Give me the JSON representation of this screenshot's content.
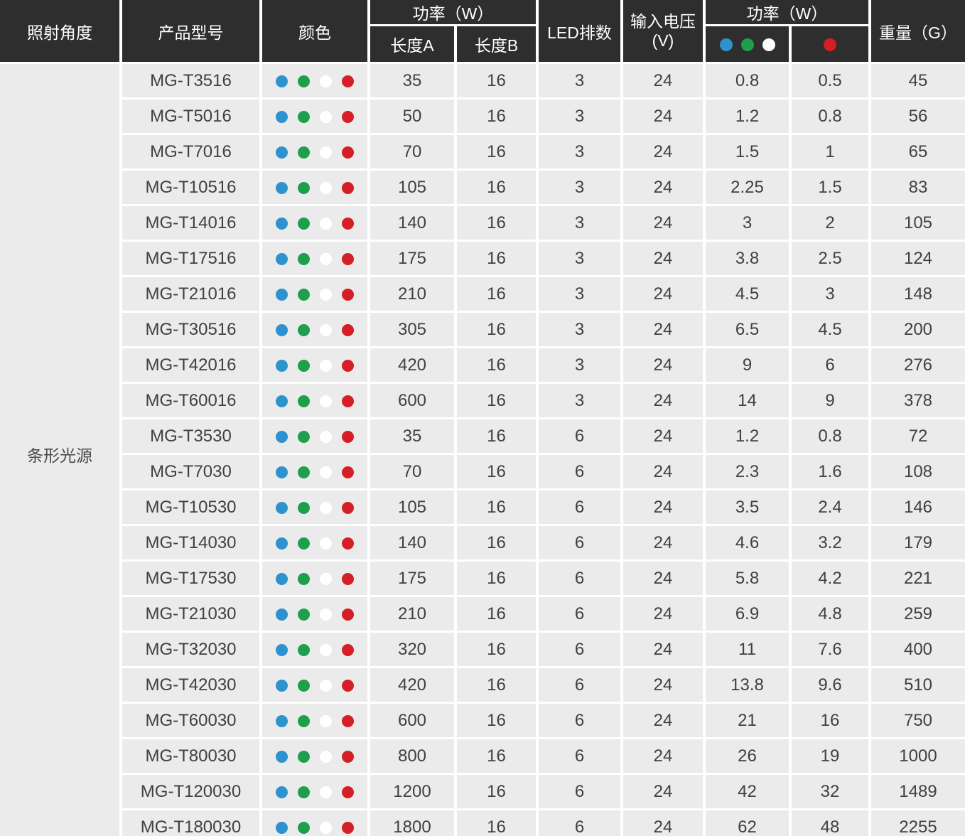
{
  "table": {
    "headers": {
      "angle": "照射角度",
      "model": "产品型号",
      "color": "颜色",
      "power_group_lengths": "功率（W）",
      "length_a": "长度A",
      "length_b": "长度B",
      "led_rows": "LED排数",
      "input_voltage_line1": "输入电压",
      "input_voltage_line2": "(V)",
      "power_group_colors": "功率（W）",
      "weight": "重量（G）"
    },
    "angle_group_label": "条形光源",
    "color_dot_icons": [
      "blue-dot-icon",
      "green-dot-icon",
      "white-dot-icon",
      "red-dot-icon"
    ],
    "power_subcolumn_1_dots": [
      "blue-dot-icon",
      "green-dot-icon",
      "white-dot-icon"
    ],
    "power_subcolumn_2_dots": [
      "red-dot-icon"
    ],
    "rows": [
      {
        "model": "MG-T3516",
        "length_a": "35",
        "length_b": "16",
        "led_rows": "3",
        "voltage": "24",
        "power_bgw": "0.8",
        "power_r": "0.5",
        "weight": "45"
      },
      {
        "model": "MG-T5016",
        "length_a": "50",
        "length_b": "16",
        "led_rows": "3",
        "voltage": "24",
        "power_bgw": "1.2",
        "power_r": "0.8",
        "weight": "56"
      },
      {
        "model": "MG-T7016",
        "length_a": "70",
        "length_b": "16",
        "led_rows": "3",
        "voltage": "24",
        "power_bgw": "1.5",
        "power_r": "1",
        "weight": "65"
      },
      {
        "model": "MG-T10516",
        "length_a": "105",
        "length_b": "16",
        "led_rows": "3",
        "voltage": "24",
        "power_bgw": "2.25",
        "power_r": "1.5",
        "weight": "83"
      },
      {
        "model": "MG-T14016",
        "length_a": "140",
        "length_b": "16",
        "led_rows": "3",
        "voltage": "24",
        "power_bgw": "3",
        "power_r": "2",
        "weight": "105"
      },
      {
        "model": "MG-T17516",
        "length_a": "175",
        "length_b": "16",
        "led_rows": "3",
        "voltage": "24",
        "power_bgw": "3.8",
        "power_r": "2.5",
        "weight": "124"
      },
      {
        "model": "MG-T21016",
        "length_a": "210",
        "length_b": "16",
        "led_rows": "3",
        "voltage": "24",
        "power_bgw": "4.5",
        "power_r": "3",
        "weight": "148"
      },
      {
        "model": "MG-T30516",
        "length_a": "305",
        "length_b": "16",
        "led_rows": "3",
        "voltage": "24",
        "power_bgw": "6.5",
        "power_r": "4.5",
        "weight": "200"
      },
      {
        "model": "MG-T42016",
        "length_a": "420",
        "length_b": "16",
        "led_rows": "3",
        "voltage": "24",
        "power_bgw": "9",
        "power_r": "6",
        "weight": "276"
      },
      {
        "model": "MG-T60016",
        "length_a": "600",
        "length_b": "16",
        "led_rows": "3",
        "voltage": "24",
        "power_bgw": "14",
        "power_r": "9",
        "weight": "378"
      },
      {
        "model": "MG-T3530",
        "length_a": "35",
        "length_b": "16",
        "led_rows": "6",
        "voltage": "24",
        "power_bgw": "1.2",
        "power_r": "0.8",
        "weight": "72"
      },
      {
        "model": "MG-T7030",
        "length_a": "70",
        "length_b": "16",
        "led_rows": "6",
        "voltage": "24",
        "power_bgw": "2.3",
        "power_r": "1.6",
        "weight": "108"
      },
      {
        "model": "MG-T10530",
        "length_a": "105",
        "length_b": "16",
        "led_rows": "6",
        "voltage": "24",
        "power_bgw": "3.5",
        "power_r": "2.4",
        "weight": "146"
      },
      {
        "model": "MG-T14030",
        "length_a": "140",
        "length_b": "16",
        "led_rows": "6",
        "voltage": "24",
        "power_bgw": "4.6",
        "power_r": "3.2",
        "weight": "179"
      },
      {
        "model": "MG-T17530",
        "length_a": "175",
        "length_b": "16",
        "led_rows": "6",
        "voltage": "24",
        "power_bgw": "5.8",
        "power_r": "4.2",
        "weight": "221"
      },
      {
        "model": "MG-T21030",
        "length_a": "210",
        "length_b": "16",
        "led_rows": "6",
        "voltage": "24",
        "power_bgw": "6.9",
        "power_r": "4.8",
        "weight": "259"
      },
      {
        "model": "MG-T32030",
        "length_a": "320",
        "length_b": "16",
        "led_rows": "6",
        "voltage": "24",
        "power_bgw": "11",
        "power_r": "7.6",
        "weight": "400"
      },
      {
        "model": "MG-T42030",
        "length_a": "420",
        "length_b": "16",
        "led_rows": "6",
        "voltage": "24",
        "power_bgw": "13.8",
        "power_r": "9.6",
        "weight": "510"
      },
      {
        "model": "MG-T60030",
        "length_a": "600",
        "length_b": "16",
        "led_rows": "6",
        "voltage": "24",
        "power_bgw": "21",
        "power_r": "16",
        "weight": "750"
      },
      {
        "model": "MG-T80030",
        "length_a": "800",
        "length_b": "16",
        "led_rows": "6",
        "voltage": "24",
        "power_bgw": "26",
        "power_r": "19",
        "weight": "1000"
      },
      {
        "model": "MG-T120030",
        "length_a": "1200",
        "length_b": "16",
        "led_rows": "6",
        "voltage": "24",
        "power_bgw": "42",
        "power_r": "32",
        "weight": "1489"
      },
      {
        "model": "MG-T180030",
        "length_a": "1800",
        "length_b": "16",
        "led_rows": "6",
        "voltage": "24",
        "power_bgw": "62",
        "power_r": "48",
        "weight": "2255"
      }
    ]
  },
  "colors": {
    "header_bg": "#2e2e2e",
    "header_text": "#ffffff",
    "cell_bg": "#ebebeb",
    "body_text": "#404040",
    "grid": "#ffffff",
    "dot_blue": "#2e92ce",
    "dot_green": "#1f9e4d",
    "dot_white": "#ffffff",
    "dot_red": "#d41f26"
  }
}
